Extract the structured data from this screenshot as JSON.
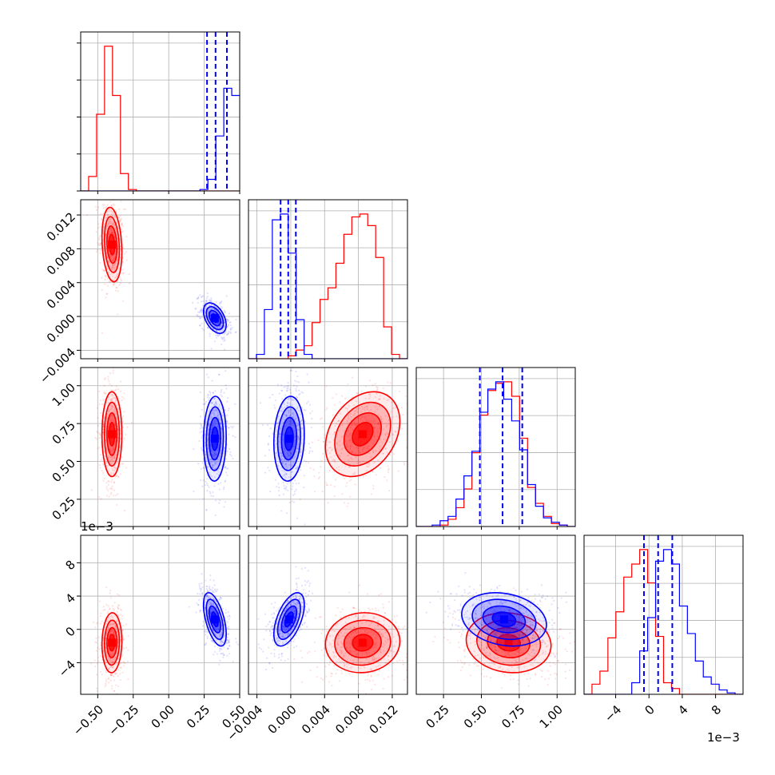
{
  "chart_data": {
    "type": "corner",
    "parameters": [
      {
        "index": 0,
        "range": [
          -0.62,
          0.5
        ],
        "ticks": [
          -0.5,
          -0.25,
          0.0,
          0.25,
          0.5
        ],
        "tick_labels": [
          "−0.50",
          "−0.25",
          "0.00",
          "0.25",
          "0.50"
        ]
      },
      {
        "index": 1,
        "range": [
          -0.005,
          0.0138
        ],
        "ticks": [
          -0.004,
          0.0,
          0.004,
          0.008,
          0.012
        ],
        "tick_labels": [
          "−0.004",
          "0.000",
          "0.004",
          "0.008",
          "0.012"
        ]
      },
      {
        "index": 2,
        "range": [
          0.07,
          1.12
        ],
        "ticks": [
          0.25,
          0.5,
          0.75,
          1.0
        ],
        "tick_labels": [
          "0.25",
          "0.50",
          "0.75",
          "1.00"
        ]
      },
      {
        "index": 3,
        "range": [
          -0.0078,
          0.0113
        ],
        "ticks": [
          -0.004,
          0.0,
          0.004,
          0.008
        ],
        "tick_labels": [
          "−4",
          "0",
          "4",
          "8"
        ],
        "offset_text": "1e−3"
      }
    ],
    "series": [
      {
        "color": "#ff0000",
        "means": [
          -0.4,
          0.0085,
          0.68,
          -0.0016
        ],
        "sds": [
          0.035,
          0.0022,
          0.14,
          0.0018
        ],
        "histograms": [
          {
            "edges_range": [
              -0.62,
              0.5
            ],
            "bins": 20,
            "counts": [
              0,
              0.1,
              0.53,
              1.0,
              0.66,
              0.12,
              0.01,
              0,
              0,
              0,
              0,
              0,
              0,
              0,
              0,
              0,
              0,
              0,
              0,
              0
            ]
          },
          {
            "edges_range": [
              -0.005,
              0.0138
            ],
            "bins": 20,
            "counts": [
              0,
              0,
              0,
              0,
              0,
              0.02,
              0.06,
              0.09,
              0.25,
              0.41,
              0.49,
              0.66,
              0.86,
              0.98,
              1.0,
              0.92,
              0.7,
              0.22,
              0.03,
              0
            ]
          },
          {
            "edges_range": [
              0.07,
              1.12
            ],
            "bins": 20,
            "counts": [
              0,
              0,
              0,
              0.01,
              0.05,
              0.13,
              0.26,
              0.51,
              0.77,
              0.94,
              0.99,
              1.0,
              0.9,
              0.61,
              0.27,
              0.16,
              0.07,
              0.02,
              0.01,
              0
            ]
          },
          {
            "edges_range": [
              -0.0078,
              0.0113
            ],
            "bins": 20,
            "counts": [
              0,
              0.07,
              0.16,
              0.39,
              0.57,
              0.81,
              0.9,
              1.0,
              0.77,
              0.4,
              0.08,
              0.04,
              0,
              0,
              0,
              0,
              0,
              0,
              0,
              0
            ]
          }
        ]
      },
      {
        "color": "#0000ff",
        "means": [
          0.325,
          -0.0002,
          0.65,
          0.0012
        ],
        "sds": [
          0.04,
          0.0009,
          0.14,
          0.0016
        ],
        "quantile_lines": [
          [
            0.27,
            0.33,
            0.41
          ],
          [
            -0.0012,
            -0.0003,
            0.0006
          ],
          [
            0.49,
            0.64,
            0.77
          ],
          [
            -0.0006,
            0.0011,
            0.0028
          ]
        ],
        "histograms": [
          {
            "edges_range": [
              -0.62,
              0.5
            ],
            "bins": 20,
            "counts": [
              0,
              0,
              0,
              0,
              0,
              0,
              0,
              0,
              0,
              0,
              0,
              0,
              0,
              0,
              0,
              0.01,
              0.08,
              0.38,
              0.71,
              0.66
            ]
          },
          {
            "edges_range": [
              -0.005,
              0.0138
            ],
            "bins": 20,
            "counts": [
              0,
              0.03,
              0.34,
              0.96,
              1.0,
              0.73,
              0.27,
              0.03,
              0,
              0,
              0,
              0,
              0,
              0,
              0,
              0,
              0,
              0,
              0,
              0
            ]
          },
          {
            "edges_range": [
              0.07,
              1.12
            ],
            "bins": 20,
            "counts": [
              0,
              0,
              0.01,
              0.04,
              0.07,
              0.19,
              0.35,
              0.52,
              0.79,
              0.95,
              1.0,
              0.88,
              0.73,
              0.53,
              0.29,
              0.14,
              0.06,
              0.03,
              0.01,
              0
            ]
          },
          {
            "edges_range": [
              -0.0078,
              0.0113
            ],
            "bins": 20,
            "counts": [
              0,
              0,
              0,
              0,
              0,
              0,
              0.08,
              0.3,
              0.53,
              0.92,
              1.0,
              0.9,
              0.61,
              0.42,
              0.23,
              0.12,
              0.07,
              0.03,
              0.01,
              0
            ]
          }
        ]
      }
    ],
    "correlations": {
      "0-1": [
        -0.2,
        -0.45
      ],
      "0-2": [
        0.0,
        0.05
      ],
      "0-3": [
        0.05,
        -0.55
      ],
      "1-2": [
        0.3,
        0.1
      ],
      "1-3": [
        0.05,
        0.55
      ],
      "2-3": [
        -0.1,
        -0.2
      ]
    },
    "grid": true,
    "legend": "none"
  }
}
